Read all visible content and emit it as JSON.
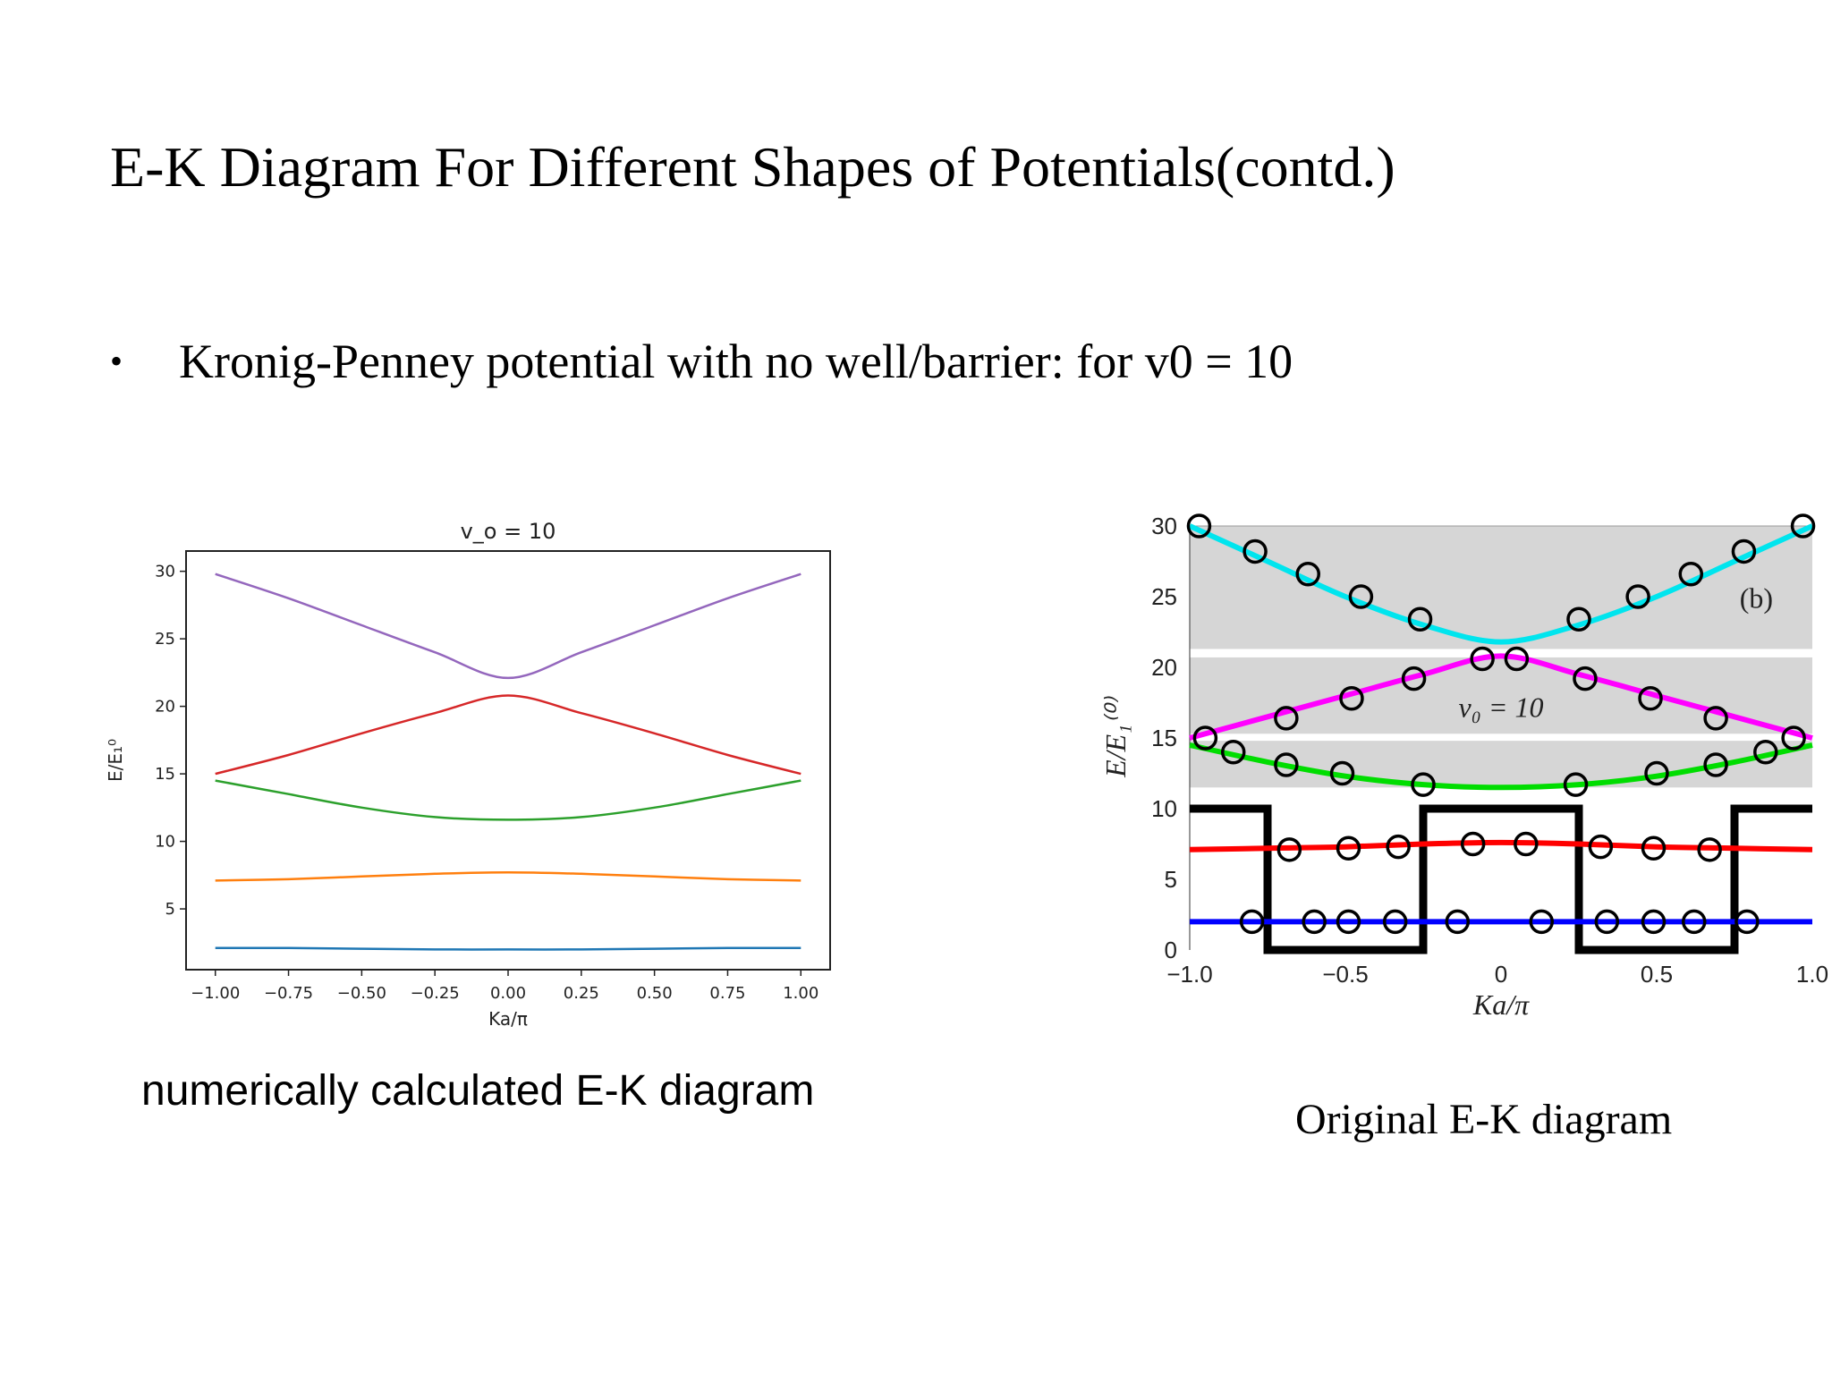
{
  "slide": {
    "title": "E-K Diagram For Different Shapes of Potentials(contd.)",
    "bullet_symbol": "•",
    "bullet_text": "Kronig-Penney potential with no well/barrier: for v0 = 10",
    "caption_left": "numerically calculated  E-K diagram",
    "caption_right": "Original E-K diagram"
  },
  "chart_data": [
    {
      "id": "numerical",
      "type": "line",
      "title": "v_o = 10",
      "xlabel": "Ka/π",
      "ylabel": "E/E₁⁰",
      "xlim": [
        -1.1,
        1.1
      ],
      "ylim": [
        0.5,
        31.5
      ],
      "xticks": [
        -1.0,
        -0.75,
        -0.5,
        -0.25,
        0.0,
        0.25,
        0.5,
        0.75,
        1.0
      ],
      "xtick_labels": [
        "−1.00",
        "−0.75",
        "−0.50",
        "−0.25",
        "0.00",
        "0.25",
        "0.50",
        "0.75",
        "1.00"
      ],
      "yticks": [
        5,
        10,
        15,
        20,
        25,
        30
      ],
      "ytick_labels": [
        "5",
        "10",
        "15",
        "20",
        "25",
        "30"
      ],
      "grid": false,
      "legend": "none",
      "x": [
        -1.0,
        -0.75,
        -0.5,
        -0.25,
        0.0,
        0.25,
        0.5,
        0.75,
        1.0
      ],
      "series": [
        {
          "color": "#1f77b4",
          "values": [
            2.1,
            2.1,
            2.05,
            2.0,
            2.0,
            2.0,
            2.05,
            2.1,
            2.1
          ]
        },
        {
          "color": "#ff7f0e",
          "values": [
            7.1,
            7.2,
            7.4,
            7.6,
            7.7,
            7.6,
            7.4,
            7.2,
            7.1
          ]
        },
        {
          "color": "#2ca02c",
          "values": [
            14.5,
            13.5,
            12.5,
            11.8,
            11.6,
            11.8,
            12.5,
            13.5,
            14.5
          ]
        },
        {
          "color": "#d62728",
          "values": [
            15.0,
            16.4,
            18.0,
            19.5,
            20.8,
            19.5,
            18.0,
            16.4,
            15.0
          ]
        },
        {
          "color": "#9467bd",
          "values": [
            29.8,
            28.0,
            26.0,
            24.0,
            22.1,
            24.0,
            26.0,
            28.0,
            29.8
          ]
        }
      ]
    },
    {
      "id": "original",
      "type": "line",
      "annotation_label": "(b)",
      "annotation_v0": "v₀ = 10",
      "xlabel": "Ka/π",
      "ylabel": "E/E₁⁽⁰⁾",
      "xlim": [
        -1.0,
        1.0
      ],
      "ylim": [
        0,
        30
      ],
      "xticks": [
        -1.0,
        -0.5,
        0,
        0.5,
        1.0
      ],
      "xtick_labels": [
        "−1.0",
        "−0.5",
        "0",
        "0.5",
        "1.0"
      ],
      "yticks": [
        0,
        5,
        10,
        15,
        20,
        25,
        30
      ],
      "ytick_labels": [
        "0",
        "5",
        "10",
        "15",
        "20",
        "25",
        "30"
      ],
      "grid": false,
      "legend": "none",
      "bands": [
        {
          "ymin": 11.5,
          "ymax": 14.8,
          "color": "#d6d6d6"
        },
        {
          "ymin": 15.3,
          "ymax": 20.7,
          "color": "#d6d6d6"
        },
        {
          "ymin": 21.3,
          "ymax": 30.0,
          "color": "#d6d6d6"
        }
      ],
      "potential": {
        "color": "#000000",
        "low": 0,
        "high": 10,
        "x": [
          -1.0,
          -0.75,
          -0.75,
          -0.25,
          -0.25,
          0.25,
          0.25,
          0.75,
          0.75,
          1.0
        ],
        "y": [
          10,
          10,
          0,
          0,
          10,
          10,
          0,
          0,
          10,
          10
        ]
      },
      "x": [
        -1.0,
        -0.75,
        -0.5,
        -0.25,
        0.0,
        0.25,
        0.5,
        0.75,
        1.0
      ],
      "series": [
        {
          "color": "#0000ff",
          "values": [
            2.0,
            2.0,
            2.0,
            2.0,
            2.0,
            2.0,
            2.0,
            2.0,
            2.0
          ]
        },
        {
          "color": "#ff0000",
          "values": [
            7.1,
            7.2,
            7.3,
            7.5,
            7.6,
            7.5,
            7.3,
            7.2,
            7.1
          ]
        },
        {
          "color": "#00dd00",
          "values": [
            14.5,
            13.3,
            12.3,
            11.7,
            11.5,
            11.7,
            12.3,
            13.3,
            14.5
          ]
        },
        {
          "color": "#ff00ff",
          "values": [
            15.0,
            16.5,
            18.0,
            19.5,
            20.8,
            19.5,
            18.0,
            16.5,
            15.0
          ]
        },
        {
          "color": "#00e5ee",
          "values": [
            30.0,
            27.5,
            25.0,
            23.0,
            21.8,
            23.0,
            25.0,
            27.5,
            30.0
          ]
        }
      ],
      "markers": [
        {
          "x": -0.97,
          "y": 30.0
        },
        {
          "x": -0.79,
          "y": 28.2
        },
        {
          "x": -0.62,
          "y": 26.6
        },
        {
          "x": -0.45,
          "y": 25.0
        },
        {
          "x": -0.26,
          "y": 23.4
        },
        {
          "x": 0.25,
          "y": 23.4
        },
        {
          "x": 0.44,
          "y": 25.0
        },
        {
          "x": 0.61,
          "y": 26.6
        },
        {
          "x": 0.78,
          "y": 28.2
        },
        {
          "x": 0.97,
          "y": 30.0
        },
        {
          "x": -0.95,
          "y": 15.0
        },
        {
          "x": -0.69,
          "y": 16.4
        },
        {
          "x": -0.48,
          "y": 17.8
        },
        {
          "x": -0.28,
          "y": 19.2
        },
        {
          "x": -0.06,
          "y": 20.6
        },
        {
          "x": 0.05,
          "y": 20.6
        },
        {
          "x": 0.27,
          "y": 19.2
        },
        {
          "x": 0.48,
          "y": 17.8
        },
        {
          "x": 0.69,
          "y": 16.4
        },
        {
          "x": 0.94,
          "y": 15.0
        },
        {
          "x": -0.86,
          "y": 14.0
        },
        {
          "x": -0.69,
          "y": 13.1
        },
        {
          "x": -0.51,
          "y": 12.5
        },
        {
          "x": -0.25,
          "y": 11.7
        },
        {
          "x": 0.24,
          "y": 11.7
        },
        {
          "x": 0.5,
          "y": 12.5
        },
        {
          "x": 0.69,
          "y": 13.1
        },
        {
          "x": 0.85,
          "y": 14.0
        },
        {
          "x": -0.68,
          "y": 7.1
        },
        {
          "x": -0.49,
          "y": 7.2
        },
        {
          "x": -0.33,
          "y": 7.3
        },
        {
          "x": -0.09,
          "y": 7.5
        },
        {
          "x": 0.08,
          "y": 7.5
        },
        {
          "x": 0.32,
          "y": 7.3
        },
        {
          "x": 0.49,
          "y": 7.2
        },
        {
          "x": 0.67,
          "y": 7.1
        },
        {
          "x": -0.8,
          "y": 2.0
        },
        {
          "x": -0.6,
          "y": 2.0
        },
        {
          "x": -0.49,
          "y": 2.0
        },
        {
          "x": -0.34,
          "y": 2.0
        },
        {
          "x": -0.14,
          "y": 2.0
        },
        {
          "x": 0.13,
          "y": 2.0
        },
        {
          "x": 0.34,
          "y": 2.0
        },
        {
          "x": 0.49,
          "y": 2.0
        },
        {
          "x": 0.62,
          "y": 2.0
        },
        {
          "x": 0.79,
          "y": 2.0
        }
      ]
    }
  ]
}
